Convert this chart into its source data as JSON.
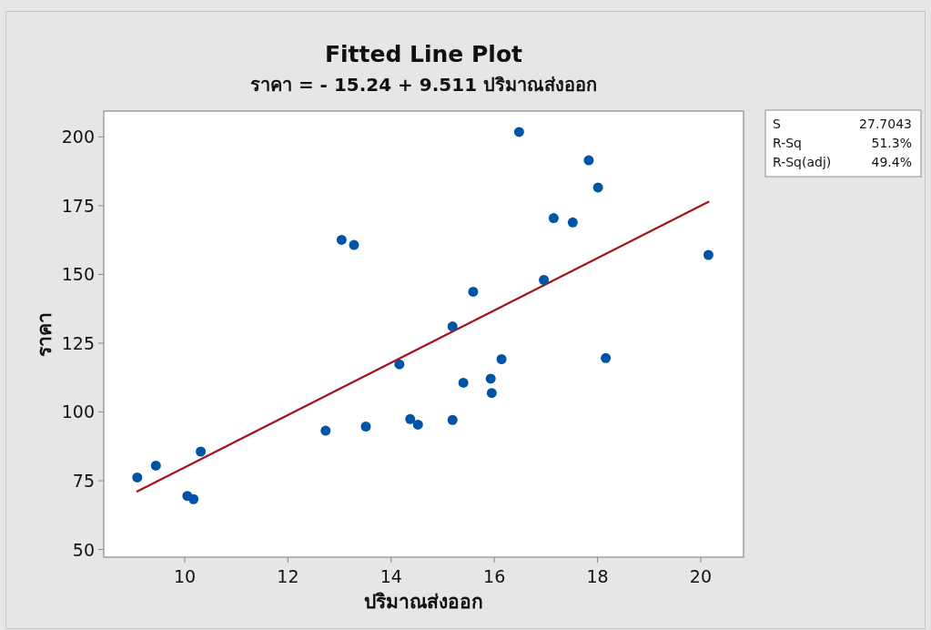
{
  "chart_data": {
    "type": "scatter",
    "title": "Fitted Line Plot",
    "subtitle": "ราคา = - 15.24 + 9.511 ปริมาณส่งออก",
    "xlabel": "ปริมาณส่งออก",
    "ylabel": "ราคา",
    "annotations": [
      "S 27.7043",
      "R-Sq 51.3%",
      "R-Sq(adj) 49.4%"
    ],
    "xlim": [
      8.43,
      20.83
    ],
    "ylim": [
      47.2,
      209.4
    ],
    "xticks": [
      10,
      12,
      14,
      16,
      18,
      20
    ],
    "yticks": [
      50,
      75,
      100,
      125,
      150,
      175,
      200
    ],
    "grid": false,
    "series": [
      {
        "marker": "circle",
        "color": "#0054a6",
        "x": [
          9.08,
          9.44,
          10.05,
          10.17,
          10.31,
          12.73,
          13.04,
          13.28,
          13.51,
          14.16,
          14.37,
          14.52,
          15.19,
          15.19,
          15.4,
          15.59,
          15.93,
          15.95,
          16.14,
          16.48,
          16.96,
          17.15,
          17.52,
          17.83,
          18.01,
          18.16,
          20.15
        ],
        "values": [
          76.2,
          80.5,
          69.5,
          68.3,
          85.6,
          93.2,
          162.6,
          160.7,
          94.7,
          117.3,
          97.4,
          95.4,
          97.1,
          131.1,
          110.6,
          143.7,
          112.1,
          106.9,
          119.2,
          201.8,
          148.0,
          170.5,
          168.9,
          191.5,
          181.6,
          119.6,
          157.1
        ]
      },
      {
        "type": "line",
        "color": "#a5101a",
        "line_style": "solid",
        "x": [
          9.08,
          20.15
        ],
        "values": [
          71.1,
          176.4
        ]
      }
    ]
  }
}
